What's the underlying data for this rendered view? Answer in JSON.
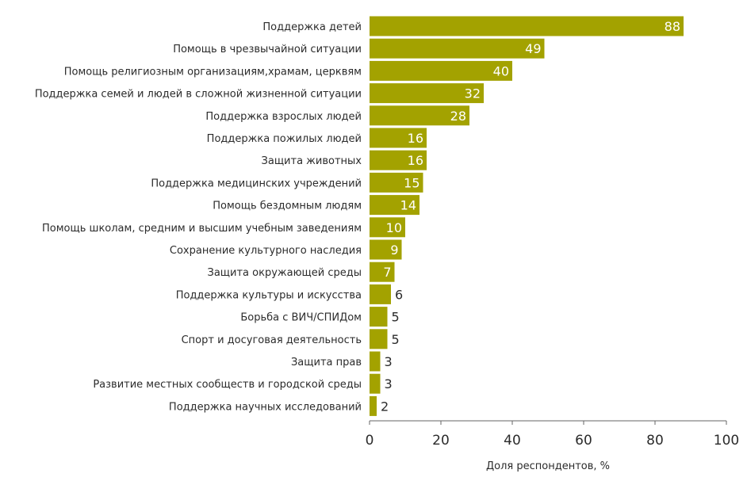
{
  "chart_data": {
    "type": "bar",
    "orientation": "horizontal",
    "categories": [
      "Поддержка детей",
      "Помощь в чрезвычайной ситуации",
      "Помощь религиозным организациям,храмам, церквям",
      "Поддержка семей и людей в сложной жизненной ситуации",
      "Поддержка взрослых людей",
      "Поддержка пожилых людей",
      "Защита животных",
      "Поддержка медицинских учреждений",
      "Помощь бездомным людям",
      "Помощь школам, средним и высшим учебным заведениям",
      "Сохранение культурного наследия",
      "Защита окружающей среды",
      "Поддержка культуры и искусства",
      "Борьба с ВИЧ/СПИДом",
      "Спорт и досуговая деятельность",
      "Защита прав",
      "Развитие местных сообществ и городской среды",
      "Поддержка научных исследований"
    ],
    "values": [
      88,
      49,
      40,
      32,
      28,
      16,
      16,
      15,
      14,
      10,
      9,
      7,
      6,
      5,
      5,
      3,
      3,
      2
    ],
    "xlabel": "Доля респондентов, %",
    "xlim": [
      0,
      100
    ],
    "xticks": [
      0,
      20,
      40,
      60,
      80,
      100
    ],
    "grid": false,
    "bar_color": "#a3a200",
    "value_labels": "inside bar end (white) for values ≥ 7, outside bar (dark) for smaller values"
  }
}
